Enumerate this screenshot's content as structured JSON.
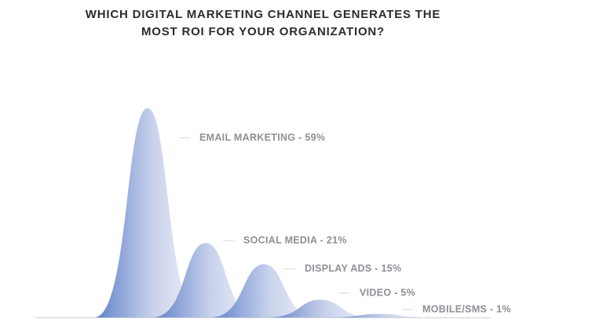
{
  "chart_data": {
    "type": "peak",
    "title": "WHICH DIGITAL MARKETING CHANNEL GENERATES THE MOST ROI FOR YOUR ORGANIZATION?",
    "values": [
      59,
      21,
      15,
      5,
      1
    ],
    "value_labels": [
      "EMAIL MARKETING - 59%",
      "SOCIAL MEDIA - 21%",
      "DISPLAY ADS - 15%",
      "VIDEO - 5%",
      "MOBILE/SMS - 1%"
    ]
  }
}
